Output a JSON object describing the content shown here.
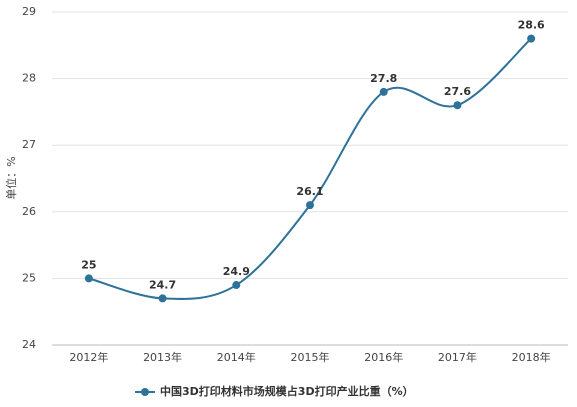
{
  "chart_data": {
    "type": "line",
    "y_label": "单位：%",
    "categories": [
      "2012年",
      "2013年",
      "2014年",
      "2015年",
      "2016年",
      "2017年",
      "2018年"
    ],
    "series": [
      {
        "name": "中国3D打印材料市场规模占3D打印产业比重（%）",
        "color": "#2e7299",
        "values": [
          25,
          24.7,
          24.9,
          26.1,
          27.8,
          27.6,
          28.6
        ]
      }
    ],
    "ylim": [
      24,
      29
    ],
    "yticks": [
      24,
      25,
      26,
      27,
      28,
      29
    ],
    "grid": true,
    "legend": "bottom",
    "smooth": true
  }
}
